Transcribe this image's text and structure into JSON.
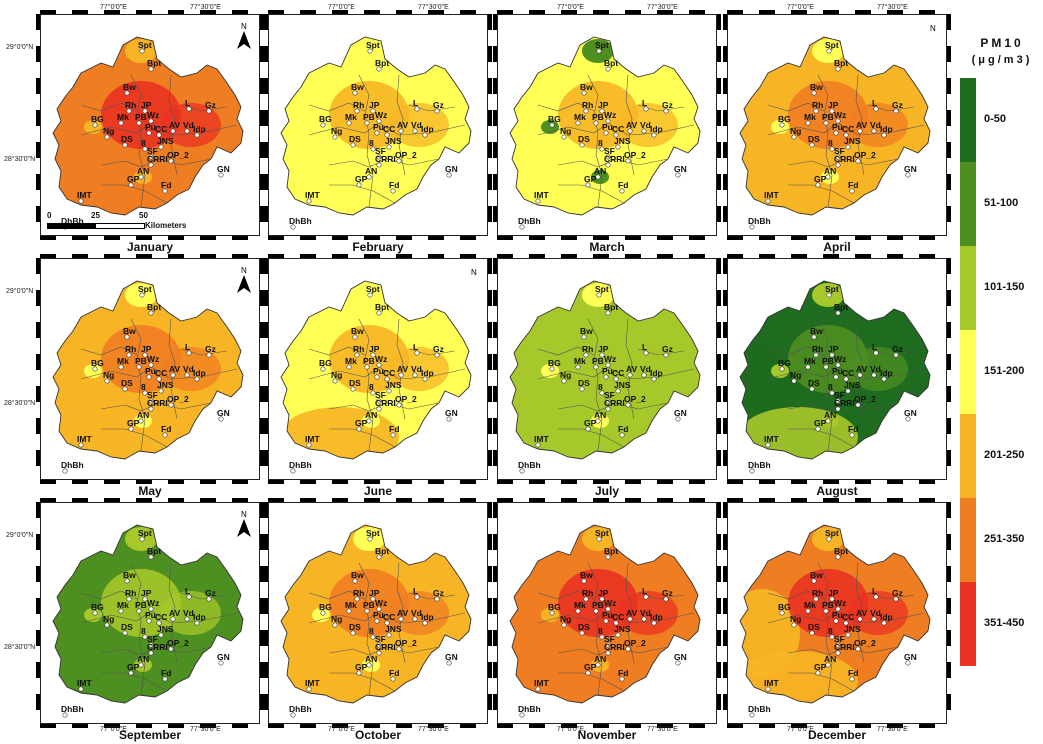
{
  "legend": {
    "title_line1": "PM10",
    "title_line2": "(μg/m3)",
    "classes": [
      {
        "label": "0-50",
        "color": "#1f6b1f"
      },
      {
        "label": "51-100",
        "color": "#4e8f21"
      },
      {
        "label": "101-150",
        "color": "#a6c82a"
      },
      {
        "label": "151-200",
        "color": "#ffff55"
      },
      {
        "label": "201-250",
        "color": "#f7b525"
      },
      {
        "label": "251-350",
        "color": "#ef7d22"
      },
      {
        "label": "351-450",
        "color": "#ea3322"
      }
    ]
  },
  "coords": {
    "lon1": "77°0'0\"E",
    "lon2": "77°30'0\"E",
    "lat1": "29°0'0\"N",
    "lat2": "28°30'0\"N"
  },
  "scale": {
    "v0": "0",
    "v1": "25",
    "v2": "50",
    "unit": "Kilometers"
  },
  "north_label": "N",
  "stations": [
    "Spt",
    "Bpt",
    "Bw",
    "Rh",
    "Mk",
    "JP",
    "Wz",
    "BG",
    "PB",
    "Pu",
    "CC",
    "AV",
    "Vd",
    "Idp",
    "L",
    "Gz",
    "Ng",
    "DS",
    "8",
    "JNS",
    "SF",
    "OP_2",
    "CRRI",
    "AN",
    "GP",
    "Fd",
    "GN",
    "IMT",
    "DhBh"
  ],
  "months": [
    {
      "name": "January",
      "base": "#ef7d22",
      "core": "#ea3322",
      "accent": "#f7b525",
      "west": "#ef7d22",
      "sw": "#ef7d22"
    },
    {
      "name": "February",
      "base": "#ffff55",
      "core": "#f7b525",
      "accent": "#ffff55",
      "west": "#ffff55",
      "sw": "#ffff55"
    },
    {
      "name": "March",
      "base": "#ffff55",
      "core": "#f7b525",
      "accent": "#4e8f21",
      "west": "#ffff55",
      "sw": "#ffff55"
    },
    {
      "name": "April",
      "base": "#f7b525",
      "core": "#ef7d22",
      "accent": "#ffff55",
      "west": "#f7b525",
      "sw": "#f7b525"
    },
    {
      "name": "May",
      "base": "#f7b525",
      "core": "#ef7d22",
      "accent": "#ffff55",
      "west": "#f7b525",
      "sw": "#f7b525"
    },
    {
      "name": "June",
      "base": "#ffff55",
      "core": "#f7b525",
      "accent": "#ffff55",
      "west": "#ffff55",
      "sw": "#f7b525"
    },
    {
      "name": "July",
      "base": "#a6c82a",
      "core": "#a6c82a",
      "accent": "#ffff55",
      "west": "#a6c82a",
      "sw": "#a6c82a"
    },
    {
      "name": "August",
      "base": "#1f6b1f",
      "core": "#4e8f21",
      "accent": "#a6c82a",
      "west": "#1f6b1f",
      "sw": "#a6c82a"
    },
    {
      "name": "September",
      "base": "#4e8f21",
      "core": "#a6c82a",
      "accent": "#a6c82a",
      "west": "#4e8f21",
      "sw": "#4e8f21"
    },
    {
      "name": "October",
      "base": "#f7b525",
      "core": "#ef7d22",
      "accent": "#ffff55",
      "west": "#f7b525",
      "sw": "#f7b525"
    },
    {
      "name": "November",
      "base": "#ef7d22",
      "core": "#ea3322",
      "accent": "#f7b525",
      "west": "#ef7d22",
      "sw": "#ef7d22"
    },
    {
      "name": "December",
      "base": "#ef7d22",
      "core": "#ea3322",
      "accent": "#f7b525",
      "west": "#f7b525",
      "sw": "#f7b525"
    }
  ]
}
